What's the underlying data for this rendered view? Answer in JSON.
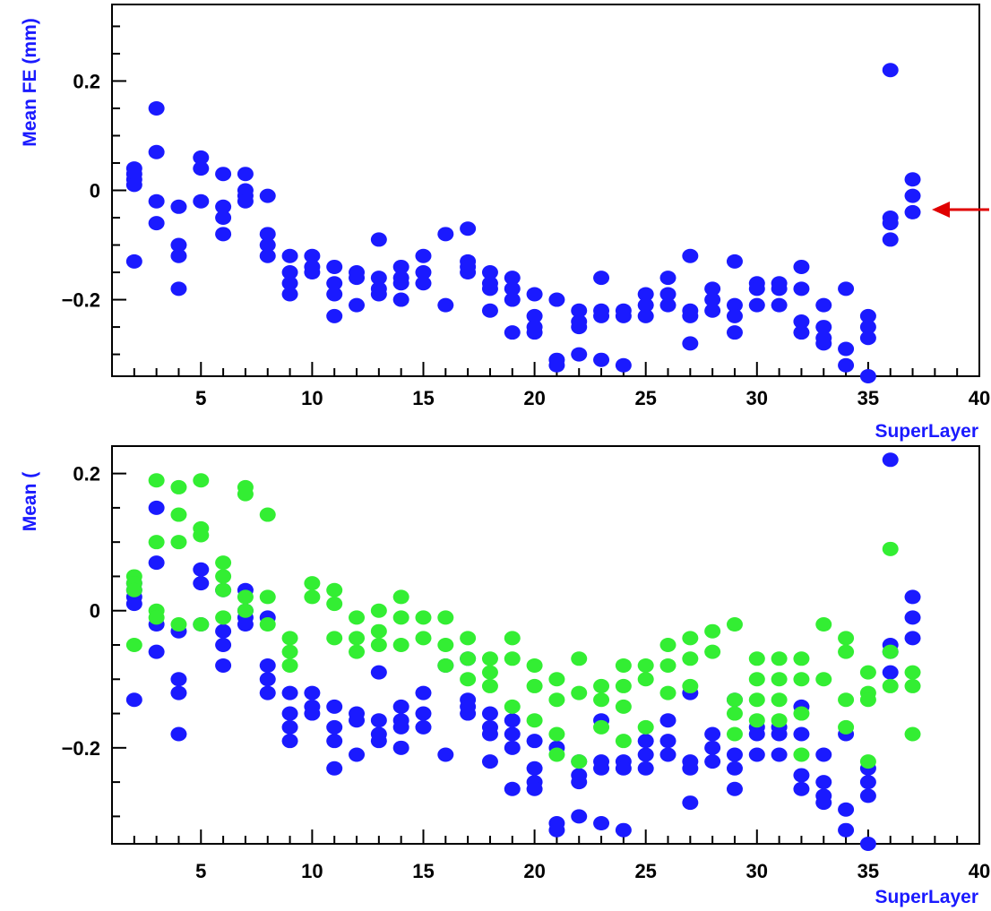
{
  "chart_data": [
    {
      "type": "scatter",
      "title": "",
      "xlabel": "SuperLayer",
      "ylabel": "Mean FE (mm)",
      "xlim": [
        1,
        40
      ],
      "ylim": [
        -0.34,
        0.34
      ],
      "xticks": [
        5,
        10,
        15,
        20,
        25,
        30,
        35,
        40
      ],
      "xtick_labels": [
        "5",
        "10",
        "15",
        "20",
        "25",
        "30",
        "35",
        "40"
      ],
      "yticks": [
        -0.2,
        0,
        0.2
      ],
      "ytick_labels": [
        "-0.2",
        "0",
        "0.2"
      ],
      "grid": false,
      "legend": "none",
      "annotation": "red arrow pointing at superlayer 37 points",
      "series": [
        {
          "color": "#1a1aff",
          "points": [
            [
              2,
              0.04
            ],
            [
              2,
              0.03
            ],
            [
              2,
              0.02
            ],
            [
              2,
              0.01
            ],
            [
              2,
              -0.13
            ],
            [
              3,
              0.15
            ],
            [
              3,
              0.07
            ],
            [
              3,
              -0.02
            ],
            [
              3,
              -0.06
            ],
            [
              4,
              -0.03
            ],
            [
              4,
              -0.1
            ],
            [
              4,
              -0.12
            ],
            [
              4,
              -0.18
            ],
            [
              5,
              0.06
            ],
            [
              5,
              0.04
            ],
            [
              5,
              -0.02
            ],
            [
              6,
              0.03
            ],
            [
              6,
              -0.03
            ],
            [
              6,
              -0.05
            ],
            [
              6,
              -0.08
            ],
            [
              7,
              0.03
            ],
            [
              7,
              0.0
            ],
            [
              7,
              -0.01
            ],
            [
              7,
              -0.02
            ],
            [
              8,
              -0.01
            ],
            [
              8,
              -0.08
            ],
            [
              8,
              -0.1
            ],
            [
              8,
              -0.12
            ],
            [
              9,
              -0.12
            ],
            [
              9,
              -0.15
            ],
            [
              9,
              -0.17
            ],
            [
              9,
              -0.19
            ],
            [
              10,
              -0.12
            ],
            [
              10,
              -0.14
            ],
            [
              10,
              -0.15
            ],
            [
              11,
              -0.14
            ],
            [
              11,
              -0.17
            ],
            [
              11,
              -0.19
            ],
            [
              11,
              -0.23
            ],
            [
              12,
              -0.15
            ],
            [
              12,
              -0.16
            ],
            [
              12,
              -0.21
            ],
            [
              13,
              -0.09
            ],
            [
              13,
              -0.16
            ],
            [
              13,
              -0.18
            ],
            [
              13,
              -0.19
            ],
            [
              14,
              -0.14
            ],
            [
              14,
              -0.16
            ],
            [
              14,
              -0.17
            ],
            [
              14,
              -0.2
            ],
            [
              15,
              -0.12
            ],
            [
              15,
              -0.15
            ],
            [
              15,
              -0.17
            ],
            [
              16,
              -0.08
            ],
            [
              16,
              -0.21
            ],
            [
              17,
              -0.07
            ],
            [
              17,
              -0.13
            ],
            [
              17,
              -0.14
            ],
            [
              17,
              -0.15
            ],
            [
              18,
              -0.15
            ],
            [
              18,
              -0.17
            ],
            [
              18,
              -0.18
            ],
            [
              18,
              -0.22
            ],
            [
              19,
              -0.16
            ],
            [
              19,
              -0.18
            ],
            [
              19,
              -0.2
            ],
            [
              19,
              -0.26
            ],
            [
              20,
              -0.19
            ],
            [
              20,
              -0.23
            ],
            [
              20,
              -0.25
            ],
            [
              20,
              -0.26
            ],
            [
              21,
              -0.2
            ],
            [
              21,
              -0.31
            ],
            [
              21,
              -0.32
            ],
            [
              22,
              -0.22
            ],
            [
              22,
              -0.24
            ],
            [
              22,
              -0.25
            ],
            [
              22,
              -0.3
            ],
            [
              23,
              -0.16
            ],
            [
              23,
              -0.22
            ],
            [
              23,
              -0.23
            ],
            [
              23,
              -0.31
            ],
            [
              24,
              -0.22
            ],
            [
              24,
              -0.23
            ],
            [
              24,
              -0.32
            ],
            [
              25,
              -0.19
            ],
            [
              25,
              -0.21
            ],
            [
              25,
              -0.23
            ],
            [
              26,
              -0.16
            ],
            [
              26,
              -0.19
            ],
            [
              26,
              -0.21
            ],
            [
              27,
              -0.12
            ],
            [
              27,
              -0.22
            ],
            [
              27,
              -0.23
            ],
            [
              27,
              -0.28
            ],
            [
              28,
              -0.18
            ],
            [
              28,
              -0.2
            ],
            [
              28,
              -0.22
            ],
            [
              29,
              -0.13
            ],
            [
              29,
              -0.21
            ],
            [
              29,
              -0.23
            ],
            [
              29,
              -0.26
            ],
            [
              30,
              -0.17
            ],
            [
              30,
              -0.18
            ],
            [
              30,
              -0.21
            ],
            [
              31,
              -0.17
            ],
            [
              31,
              -0.18
            ],
            [
              31,
              -0.21
            ],
            [
              32,
              -0.14
            ],
            [
              32,
              -0.18
            ],
            [
              32,
              -0.24
            ],
            [
              32,
              -0.26
            ],
            [
              33,
              -0.21
            ],
            [
              33,
              -0.25
            ],
            [
              33,
              -0.27
            ],
            [
              33,
              -0.28
            ],
            [
              34,
              -0.18
            ],
            [
              34,
              -0.29
            ],
            [
              34,
              -0.32
            ],
            [
              35,
              -0.23
            ],
            [
              35,
              -0.25
            ],
            [
              35,
              -0.27
            ],
            [
              35,
              -0.34
            ],
            [
              36,
              0.22
            ],
            [
              36,
              -0.05
            ],
            [
              36,
              -0.06
            ],
            [
              36,
              -0.09
            ],
            [
              37,
              0.02
            ],
            [
              37,
              -0.01
            ],
            [
              37,
              -0.04
            ]
          ]
        }
      ]
    },
    {
      "type": "scatter",
      "title": "",
      "xlabel": "SuperLayer",
      "ylabel": "Mean (",
      "xlim": [
        1,
        40
      ],
      "ylim": [
        -0.34,
        0.24
      ],
      "xticks": [
        5,
        10,
        15,
        20,
        25,
        30,
        35,
        40
      ],
      "xtick_labels": [
        "5",
        "10",
        "15",
        "20",
        "25",
        "30",
        "35",
        "40"
      ],
      "yticks": [
        -0.2,
        0,
        0.2
      ],
      "ytick_labels": [
        "-0.2",
        "0",
        "0.2"
      ],
      "grid": false,
      "legend": "none",
      "series": [
        {
          "color": "#1a1aff",
          "points": "same as top panel"
        },
        {
          "color": "#33ee33",
          "points": [
            [
              2,
              0.05
            ],
            [
              2,
              0.04
            ],
            [
              2,
              0.03
            ],
            [
              2,
              -0.05
            ],
            [
              3,
              0.19
            ],
            [
              3,
              0.1
            ],
            [
              3,
              0.0
            ],
            [
              3,
              -0.01
            ],
            [
              4,
              0.18
            ],
            [
              4,
              0.14
            ],
            [
              4,
              0.1
            ],
            [
              4,
              -0.02
            ],
            [
              5,
              0.19
            ],
            [
              5,
              0.12
            ],
            [
              5,
              0.11
            ],
            [
              5,
              -0.02
            ],
            [
              6,
              0.07
            ],
            [
              6,
              0.05
            ],
            [
              6,
              0.03
            ],
            [
              6,
              -0.01
            ],
            [
              7,
              0.18
            ],
            [
              7,
              0.17
            ],
            [
              7,
              0.02
            ],
            [
              7,
              0.0
            ],
            [
              8,
              0.14
            ],
            [
              8,
              0.02
            ],
            [
              8,
              -0.02
            ],
            [
              9,
              -0.04
            ],
            [
              9,
              -0.06
            ],
            [
              9,
              -0.08
            ],
            [
              10,
              0.04
            ],
            [
              10,
              0.02
            ],
            [
              11,
              0.03
            ],
            [
              11,
              0.01
            ],
            [
              11,
              -0.04
            ],
            [
              12,
              -0.01
            ],
            [
              12,
              -0.04
            ],
            [
              12,
              -0.06
            ],
            [
              13,
              0.0
            ],
            [
              13,
              -0.03
            ],
            [
              13,
              -0.05
            ],
            [
              14,
              0.02
            ],
            [
              14,
              -0.01
            ],
            [
              14,
              -0.05
            ],
            [
              15,
              -0.01
            ],
            [
              15,
              -0.04
            ],
            [
              16,
              -0.01
            ],
            [
              16,
              -0.05
            ],
            [
              16,
              -0.08
            ],
            [
              17,
              -0.04
            ],
            [
              17,
              -0.07
            ],
            [
              17,
              -0.1
            ],
            [
              18,
              -0.07
            ],
            [
              18,
              -0.09
            ],
            [
              18,
              -0.11
            ],
            [
              19,
              -0.04
            ],
            [
              19,
              -0.07
            ],
            [
              19,
              -0.14
            ],
            [
              20,
              -0.08
            ],
            [
              20,
              -0.11
            ],
            [
              20,
              -0.16
            ],
            [
              21,
              -0.1
            ],
            [
              21,
              -0.13
            ],
            [
              21,
              -0.18
            ],
            [
              21,
              -0.21
            ],
            [
              22,
              -0.07
            ],
            [
              22,
              -0.12
            ],
            [
              22,
              -0.22
            ],
            [
              23,
              -0.11
            ],
            [
              23,
              -0.13
            ],
            [
              23,
              -0.17
            ],
            [
              24,
              -0.08
            ],
            [
              24,
              -0.11
            ],
            [
              24,
              -0.14
            ],
            [
              24,
              -0.19
            ],
            [
              25,
              -0.08
            ],
            [
              25,
              -0.1
            ],
            [
              25,
              -0.17
            ],
            [
              26,
              -0.05
            ],
            [
              26,
              -0.08
            ],
            [
              26,
              -0.12
            ],
            [
              27,
              -0.04
            ],
            [
              27,
              -0.07
            ],
            [
              27,
              -0.11
            ],
            [
              28,
              -0.03
            ],
            [
              28,
              -0.06
            ],
            [
              29,
              -0.02
            ],
            [
              29,
              -0.13
            ],
            [
              29,
              -0.15
            ],
            [
              29,
              -0.18
            ],
            [
              30,
              -0.07
            ],
            [
              30,
              -0.1
            ],
            [
              30,
              -0.13
            ],
            [
              30,
              -0.16
            ],
            [
              31,
              -0.07
            ],
            [
              31,
              -0.1
            ],
            [
              31,
              -0.13
            ],
            [
              31,
              -0.16
            ],
            [
              32,
              -0.07
            ],
            [
              32,
              -0.1
            ],
            [
              32,
              -0.15
            ],
            [
              32,
              -0.21
            ],
            [
              33,
              -0.02
            ],
            [
              33,
              -0.1
            ],
            [
              34,
              -0.04
            ],
            [
              34,
              -0.06
            ],
            [
              34,
              -0.13
            ],
            [
              34,
              -0.17
            ],
            [
              35,
              -0.09
            ],
            [
              35,
              -0.12
            ],
            [
              35,
              -0.13
            ],
            [
              35,
              -0.22
            ],
            [
              36,
              0.09
            ],
            [
              36,
              -0.06
            ],
            [
              36,
              -0.11
            ],
            [
              37,
              -0.09
            ],
            [
              37,
              -0.11
            ],
            [
              37,
              -0.18
            ]
          ]
        }
      ]
    }
  ]
}
